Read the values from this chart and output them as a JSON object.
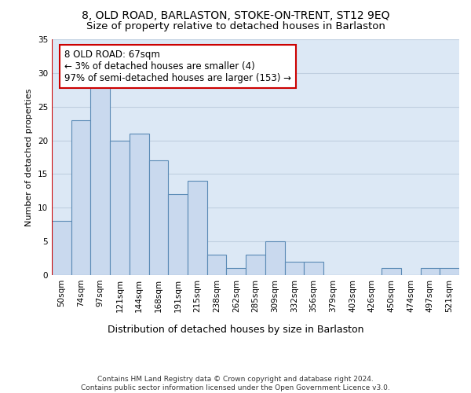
{
  "title1": "8, OLD ROAD, BARLASTON, STOKE-ON-TRENT, ST12 9EQ",
  "title2": "Size of property relative to detached houses in Barlaston",
  "xlabel": "Distribution of detached houses by size in Barlaston",
  "ylabel": "Number of detached properties",
  "categories": [
    "50sqm",
    "74sqm",
    "97sqm",
    "121sqm",
    "144sqm",
    "168sqm",
    "191sqm",
    "215sqm",
    "238sqm",
    "262sqm",
    "285sqm",
    "309sqm",
    "332sqm",
    "356sqm",
    "379sqm",
    "403sqm",
    "426sqm",
    "450sqm",
    "474sqm",
    "497sqm",
    "521sqm"
  ],
  "values": [
    8,
    23,
    28,
    20,
    21,
    17,
    12,
    14,
    3,
    1,
    3,
    5,
    2,
    2,
    0,
    0,
    0,
    1,
    0,
    1,
    1
  ],
  "bar_color": "#c9d9ee",
  "bar_edge_color": "#5a8ab5",
  "annotation_text_line1": "8 OLD ROAD: 67sqm",
  "annotation_text_line2": "← 3% of detached houses are smaller (4)",
  "annotation_text_line3": "97% of semi-detached houses are larger (153) →",
  "annotation_box_color": "#ffffff",
  "annotation_box_edge": "#cc0000",
  "vline_color": "#cc0000",
  "ylim": [
    0,
    35
  ],
  "yticks": [
    0,
    5,
    10,
    15,
    20,
    25,
    30,
    35
  ],
  "grid_color": "#c0cfe0",
  "background_color": "#dce8f5",
  "footnote": "Contains HM Land Registry data © Crown copyright and database right 2024.\nContains public sector information licensed under the Open Government Licence v3.0.",
  "title_fontsize": 10,
  "subtitle_fontsize": 9.5,
  "xlabel_fontsize": 9,
  "ylabel_fontsize": 8,
  "tick_fontsize": 7.5,
  "annot_fontsize": 8.5,
  "footnote_fontsize": 6.5
}
